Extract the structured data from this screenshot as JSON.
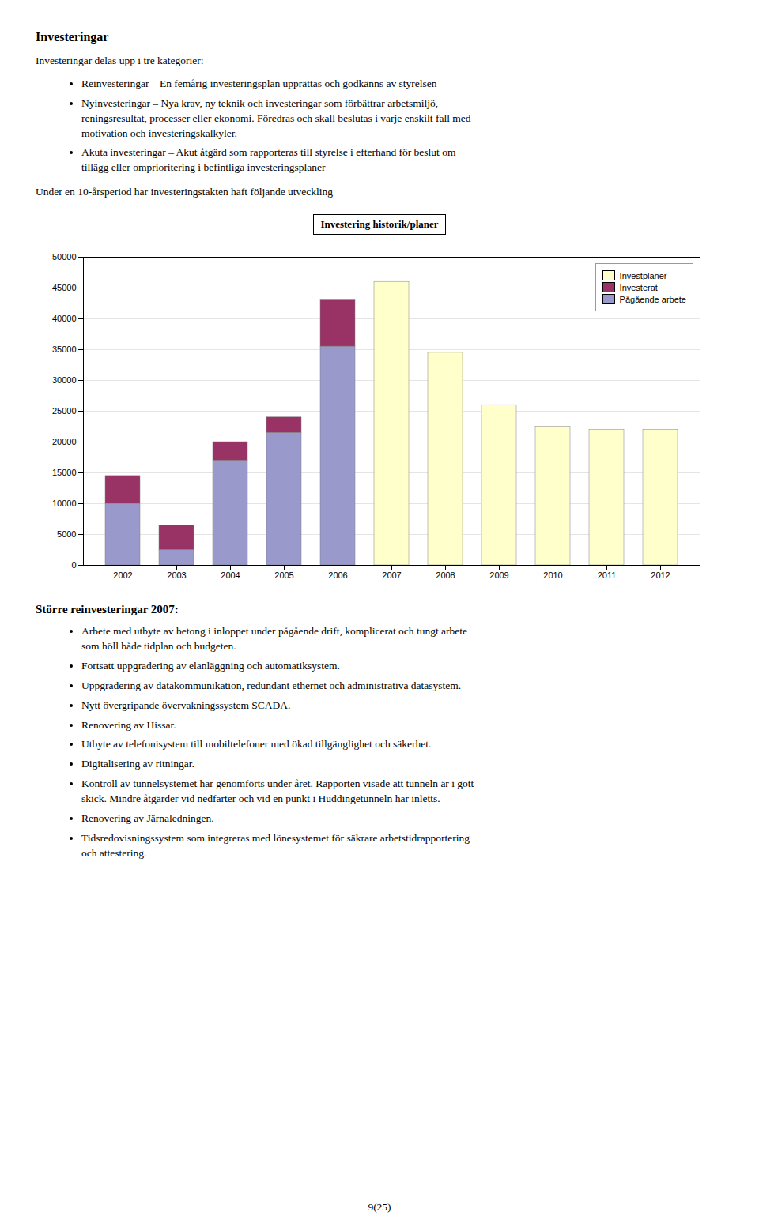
{
  "chart_data": {
    "type": "bar",
    "title": "Investering historik/planer",
    "stacked": true,
    "categories": [
      2002,
      2003,
      2004,
      2005,
      2006,
      2007,
      2008,
      2009,
      2010,
      2011,
      2012
    ],
    "series": [
      {
        "name": "Investplaner",
        "color": "#FFFFCC",
        "values": [
          0,
          0,
          0,
          0,
          0,
          46000,
          34500,
          26000,
          22500,
          22000,
          22000
        ]
      },
      {
        "name": "Investerat",
        "color": "#993366",
        "values": [
          4500,
          4000,
          3000,
          2500,
          7500,
          0,
          0,
          0,
          0,
          0,
          0
        ]
      },
      {
        "name": "Pågående arbete",
        "color": "#9999CC",
        "values": [
          10000,
          2500,
          17000,
          21500,
          35500,
          0,
          0,
          0,
          0,
          0,
          0
        ]
      }
    ],
    "ylim": [
      0,
      50000
    ],
    "yticks": [
      0,
      5000,
      10000,
      15000,
      20000,
      25000,
      30000,
      35000,
      40000,
      45000,
      50000
    ],
    "grid": true,
    "legend": "upper right"
  },
  "page_text": {
    "heading": "Investeringar",
    "intro": "Investeringar delas upp i tre kategorier:",
    "bullets_above": [
      "Reinvesteringar – En femårig investeringsplan upprättas och godkänns av styrelsen",
      "Nyinvesteringar – Nya krav, ny teknik och investeringar som förbättrar arbetsmiljö,\nreningsresultat, processer eller ekonomi. Föredras och skall beslutas i varje enskilt fall med\nmotivation och investeringskalkyler.",
      "Akuta investeringar – Akut åtgärd som rapporteras till styrelse i efterhand för beslut om\ntillägg eller omprioritering i befintliga investeringsplaner"
    ],
    "under_text": "Under en 10-årsperiod har investeringstakten haft följande utveckling",
    "section_heading": "Större reinvesteringar 2007:",
    "bullets_below": [
      "Arbete med utbyte av betong i inloppet under pågående drift, komplicerat och tungt arbete\nsom höll både tidplan och budgeten.",
      "Fortsatt uppgradering av elanläggning och automatiksystem.",
      "Uppgradering av datakommunikation, redundant ethernet och administrativa datasystem.",
      "Nytt övergripande övervakningssystem SCADA.",
      "Renovering av Hissar.",
      "Utbyte av telefonisystem till mobiltelefoner med ökad tillgänglighet och säkerhet.",
      "Digitalisering av ritningar.",
      "Kontroll av tunnelsystemet har genomförts under året. Rapporten visade att tunneln är i gott\nskick. Mindre åtgärder vid nedfarter och vid en punkt i Huddingetunneln har inletts.",
      "Renovering av Järnaledningen.",
      "Tidsredovisningssystem som integreras med lönesystemet för säkrare arbetstidrapportering\noch attestering."
    ],
    "page_number": "9(25)"
  }
}
